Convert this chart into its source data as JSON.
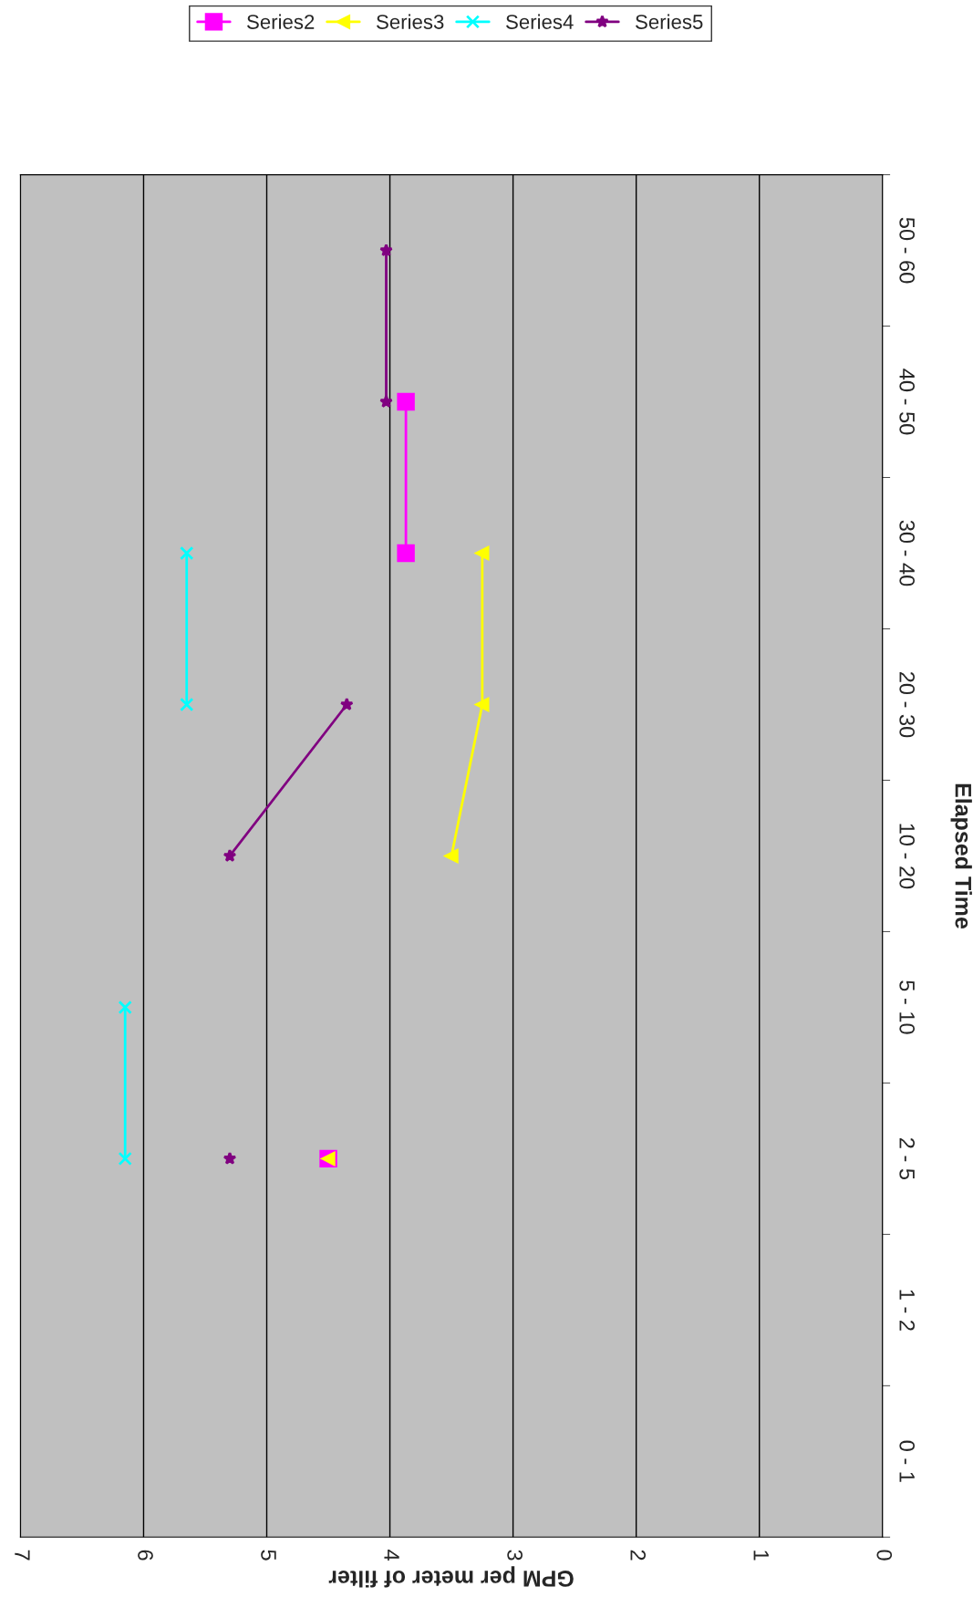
{
  "chart_data": {
    "type": "line",
    "orientation": "horizontal",
    "xlabel": "GPM per meter of filter",
    "ylabel": "Elapsed Time",
    "categories": [
      "50 - 60",
      "40 - 50",
      "30 - 40",
      "20 - 30",
      "10 - 20",
      "5 - 10",
      "2 - 5",
      "1 - 2",
      "0 - 1"
    ],
    "xlim": [
      7,
      0
    ],
    "xticks": [
      0,
      1,
      2,
      3,
      4,
      5,
      6,
      7
    ],
    "grid": "x",
    "legend": "top right",
    "series": [
      {
        "name": "Series2",
        "color": "#ff00ff",
        "marker": "square",
        "values": [
          null,
          3.87,
          3.87,
          null,
          null,
          null,
          4.5,
          null,
          null
        ]
      },
      {
        "name": "Series3",
        "color": "#ffff00",
        "marker": "triangle",
        "values": [
          null,
          null,
          3.25,
          3.25,
          3.5,
          null,
          4.5,
          null,
          null
        ]
      },
      {
        "name": "Series4",
        "color": "#00ffff",
        "marker": "cross",
        "values": [
          null,
          null,
          5.65,
          5.65,
          null,
          6.15,
          6.15,
          null,
          null
        ]
      },
      {
        "name": "Series5",
        "color": "#800080",
        "marker": "star",
        "values": [
          4.03,
          4.03,
          null,
          4.35,
          5.3,
          null,
          5.3,
          null,
          null
        ]
      }
    ]
  }
}
